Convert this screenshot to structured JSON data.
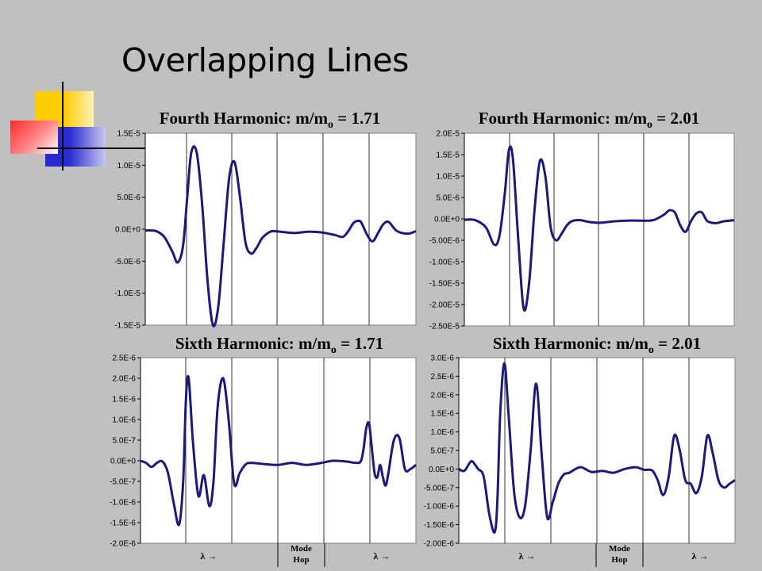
{
  "slide": {
    "title": "Overlapping Lines"
  },
  "decoration": {
    "colors": {
      "yellow": "#ffcc00",
      "red": "#ff2a2a",
      "blue": "#2a2ad4",
      "line": "#000000"
    }
  },
  "line_color": "#1a1a7a",
  "chart_data": [
    {
      "type": "line",
      "title_main": "Fourth Harmonic: m/m",
      "title_sub": "o",
      "title_value": " = 1.71",
      "yticks": [
        "1.5E-5",
        "1.0E-5",
        "5.0E-6",
        "0.0E+0",
        "-5.0E-6",
        "-1.0E-5",
        "-1.5E-5"
      ],
      "ylim": [
        -1.5e-05,
        1.5e-05
      ],
      "xlim": [
        0,
        1
      ],
      "x": [
        0,
        0.04,
        0.07,
        0.1,
        0.12,
        0.14,
        0.155,
        0.17,
        0.19,
        0.21,
        0.23,
        0.25,
        0.27,
        0.29,
        0.31,
        0.33,
        0.35,
        0.37,
        0.39,
        0.41,
        0.43,
        0.45,
        0.47,
        0.5,
        0.55,
        0.6,
        0.65,
        0.7,
        0.73,
        0.75,
        0.77,
        0.79,
        0.8,
        0.82,
        0.84,
        0.86,
        0.88,
        0.9,
        0.93,
        0.97,
        1.0
      ],
      "values": [
        -2e-07,
        -3e-07,
        -1.2e-06,
        -3.5e-06,
        -5.2e-06,
        -2.5e-06,
        5e-06,
        1.2e-05,
        1.2e-05,
        4e-06,
        -8e-06,
        -1.5e-05,
        -1.2e-05,
        -2e-06,
        8e-06,
        1.05e-05,
        5e-06,
        -2e-06,
        -3.8e-06,
        -3e-06,
        -1.5e-06,
        -7e-07,
        -3e-07,
        -4e-07,
        -6e-07,
        -4e-07,
        -5e-07,
        -9e-07,
        -1.2e-06,
        -3e-07,
        1e-06,
        1.3e-06,
        9e-07,
        -9e-07,
        -1.9e-06,
        -6e-07,
        8e-07,
        1.1e-06,
        -3e-07,
        -7e-07,
        -3e-07
      ]
    },
    {
      "type": "line",
      "title_main": "Fourth Harmonic: m/m",
      "title_sub": "o",
      "title_value": " = 2.01",
      "yticks": [
        "2.0E-5",
        "1.5E-5",
        "1.0E-5",
        "5.0E-6",
        "0.0E+0",
        "-5.00E-6",
        "-1.00E-5",
        "-1.50E-5",
        "-2.00E-5",
        "-2.50E-5"
      ],
      "ylim": [
        -2.5e-05,
        2e-05
      ],
      "xlim": [
        0,
        1
      ],
      "x": [
        0,
        0.04,
        0.08,
        0.11,
        0.13,
        0.15,
        0.165,
        0.18,
        0.2,
        0.22,
        0.24,
        0.26,
        0.28,
        0.3,
        0.32,
        0.34,
        0.36,
        0.38,
        0.4,
        0.43,
        0.46,
        0.5,
        0.55,
        0.6,
        0.65,
        0.7,
        0.74,
        0.76,
        0.78,
        0.8,
        0.82,
        0.84,
        0.86,
        0.88,
        0.9,
        0.93,
        0.96,
        1.0
      ],
      "values": [
        -2e-07,
        -3e-07,
        -2e-06,
        -6e-06,
        -4e-06,
        6e-06,
        1.6e-05,
        1.4e-05,
        -5e-06,
        -2.1e-05,
        -1.5e-05,
        2e-06,
        1.35e-05,
        1e-05,
        -2e-06,
        -5e-06,
        -3.5e-06,
        -1.5e-06,
        -5e-07,
        -3e-07,
        -7e-07,
        -9e-07,
        -6e-07,
        -4e-07,
        -4e-07,
        -3e-07,
        1e-06,
        2e-06,
        1.5e-06,
        -1.5e-06,
        -3e-06,
        -5e-07,
        1.3e-06,
        1.5e-06,
        -5e-07,
        -1e-06,
        -6e-07,
        -3e-07
      ]
    },
    {
      "type": "line",
      "title_main": "Sixth Harmonic: m/m",
      "title_sub": "o",
      "title_value": " = 1.71",
      "yticks": [
        "2.5E-6",
        "2.0E-6",
        "1.5E-6",
        "1.0E-6",
        "5.0E-7",
        "0.0E+0",
        "-5.0E-7",
        "-1.0E-6",
        "-1.5E-6",
        "-2.0E-6"
      ],
      "ylim": [
        -2e-06,
        2.5e-06
      ],
      "xlim": [
        0,
        1
      ],
      "xlabels": [
        "λ →",
        "λ →"
      ],
      "mode_hop": "Mode Hop",
      "x": [
        0,
        0.02,
        0.04,
        0.06,
        0.08,
        0.1,
        0.12,
        0.14,
        0.155,
        0.165,
        0.175,
        0.19,
        0.21,
        0.23,
        0.25,
        0.265,
        0.28,
        0.3,
        0.32,
        0.34,
        0.36,
        0.38,
        0.4,
        0.45,
        0.5,
        0.55,
        0.6,
        0.65,
        0.7,
        0.75,
        0.78,
        0.8,
        0.81,
        0.82,
        0.83,
        0.84,
        0.85,
        0.86,
        0.87,
        0.88,
        0.89,
        0.9,
        0.92,
        0.94,
        0.96,
        0.98,
        1.0
      ],
      "values": [
        0,
        -5e-08,
        -1.5e-07,
        -5e-08,
        -2e-08,
        -3e-07,
        -1e-06,
        -1.55e-06,
        -5e-07,
        1.5e-06,
        2e-06,
        5e-07,
        -8.5e-07,
        -3.5e-07,
        -1.1e-06,
        -5e-07,
        1.3e-06,
        2e-06,
        1e-06,
        -5.5e-07,
        -3e-07,
        -1e-07,
        -5e-08,
        -8e-08,
        -1e-07,
        -5e-08,
        -1e-07,
        -6e-08,
        0,
        -2e-08,
        -5e-08,
        -1e-08,
        3e-07,
        8e-07,
        9e-07,
        3e-07,
        -3e-07,
        -4e-07,
        -1e-07,
        -4e-07,
        -6e-07,
        -3e-07,
        5e-07,
        5.5e-07,
        -2e-07,
        -2e-07,
        -1e-07
      ]
    },
    {
      "type": "line",
      "title_main": "Sixth Harmonic: m/m",
      "title_sub": "o",
      "title_value": " = 2.01",
      "yticks": [
        "3.0E-6",
        "2.5E-6",
        "2.0E-6",
        "1.5E-6",
        "1.0E-6",
        "5.0E-7",
        "0.0E+0",
        "-5.00E-7",
        "-1.00E-6",
        "-1.50E-6",
        "-2.00E-6"
      ],
      "ylim": [
        -2e-06,
        3e-06
      ],
      "xlim": [
        0,
        1
      ],
      "xlabels": [
        "λ →",
        "λ →"
      ],
      "mode_hop": "Mode Hop",
      "x": [
        0,
        0.02,
        0.04,
        0.05,
        0.07,
        0.09,
        0.11,
        0.13,
        0.14,
        0.15,
        0.165,
        0.18,
        0.2,
        0.22,
        0.24,
        0.26,
        0.28,
        0.3,
        0.32,
        0.34,
        0.36,
        0.38,
        0.4,
        0.44,
        0.48,
        0.52,
        0.56,
        0.6,
        0.64,
        0.67,
        0.7,
        0.72,
        0.74,
        0.76,
        0.78,
        0.8,
        0.82,
        0.84,
        0.86,
        0.88,
        0.9,
        0.92,
        0.94,
        0.96,
        0.98,
        1.0
      ],
      "values": [
        0,
        -5e-08,
        1.7e-07,
        2e-07,
        0,
        -2e-07,
        -1.2e-06,
        -1.7e-06,
        -8e-07,
        1.5e-06,
        2.85e-06,
        1.5e-06,
        -6e-07,
        -1.3e-06,
        -1e-06,
        5e-07,
        2.3e-06,
        4e-07,
        -1.3e-06,
        -9e-07,
        -4e-07,
        -1.5e-07,
        -1e-07,
        5e-08,
        -8e-08,
        -5e-08,
        -1e-07,
        0,
        5e-08,
        -2e-08,
        -4e-08,
        -3e-07,
        -7e-07,
        -2e-07,
        9e-07,
        5e-07,
        -3e-07,
        -4e-07,
        -6.5e-07,
        -2e-07,
        9e-07,
        4e-07,
        -3e-07,
        -5e-07,
        -4e-07,
        -3e-07
      ]
    }
  ]
}
